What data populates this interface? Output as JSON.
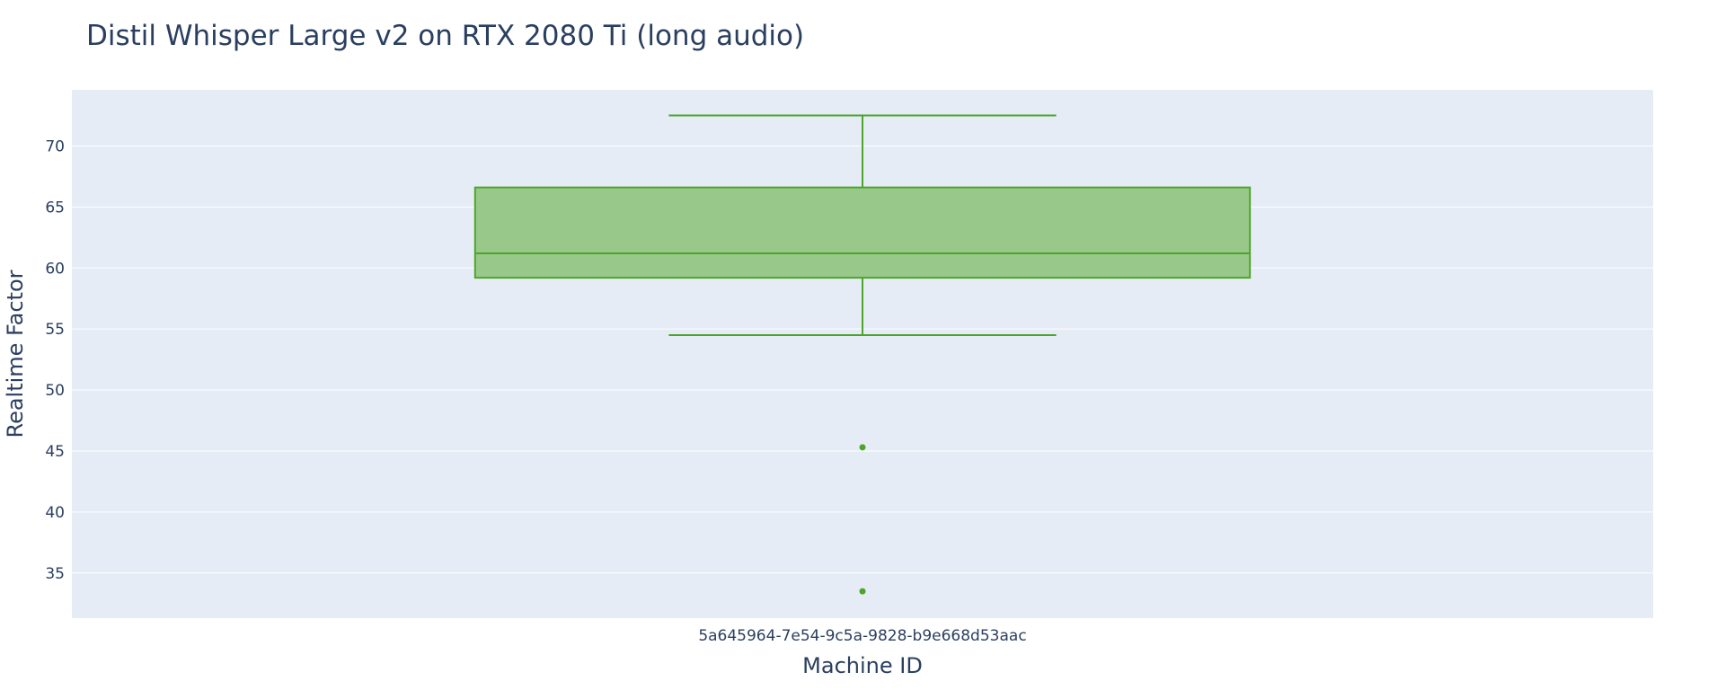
{
  "chart_data": {
    "type": "box",
    "title": "Distil Whisper Large v2 on RTX 2080 Ti (long audio)",
    "xlabel": "Machine ID",
    "ylabel": "Realtime Factor",
    "categories": [
      "5a645964-7e54-9c5a-9828-b9e668d53aac"
    ],
    "ylim": [
      31.3,
      74.6
    ],
    "yticks": [
      35,
      40,
      45,
      50,
      55,
      60,
      65,
      70
    ],
    "ytick_labels": [
      "35",
      "40",
      "45",
      "50",
      "55",
      "60",
      "65",
      "70"
    ],
    "grid": true,
    "legend": "none",
    "series": [
      {
        "category": "5a645964-7e54-9c5a-9828-b9e668d53aac",
        "min": 54.5,
        "q1": 59.2,
        "median": 61.2,
        "q3": 66.6,
        "max": 72.5,
        "outliers": [
          45.3,
          33.5
        ]
      }
    ],
    "colors": {
      "box_fill": "#99c98a",
      "box_line": "#4ca52a",
      "plot_bg": "#e5ecf6",
      "grid": "#ffffff",
      "text": "#2a3f5f"
    }
  }
}
